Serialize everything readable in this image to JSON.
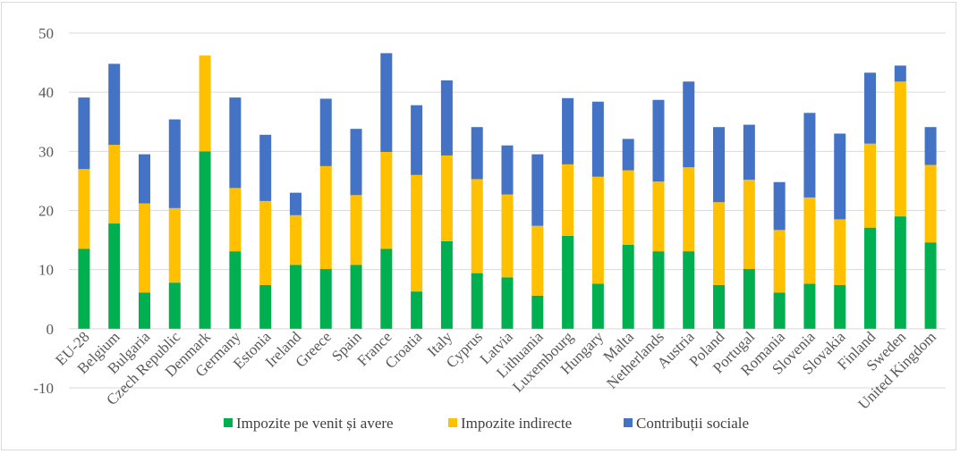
{
  "chart_data": {
    "type": "bar",
    "stacked": true,
    "title": "",
    "xlabel": "",
    "ylabel": "",
    "ylim": [
      -10,
      50
    ],
    "yticks": [
      -10,
      0,
      10,
      20,
      30,
      40,
      50
    ],
    "grid": true,
    "legend_position": "bottom",
    "categories": [
      "EU-28",
      "Belgium",
      "Bulgaria",
      "Czech Republic",
      "Denmark",
      "Germany",
      "Estonia",
      "Ireland",
      "Greece",
      "Spain",
      "France",
      "Croatia",
      "Italy",
      "Cyprus",
      "Latvia",
      "Lithuania",
      "Luxembourg",
      "Hungary",
      "Malta",
      "Netherlands",
      "Austria",
      "Poland",
      "Portugal",
      "Romania",
      "Slovenia",
      "Slovakia",
      "Finland",
      "Sweden",
      "United Kingdom"
    ],
    "series": [
      {
        "name": "Impozite pe venit și avere",
        "color": "#00b050",
        "values": [
          13.5,
          17.8,
          6.1,
          7.8,
          30.0,
          13.1,
          7.4,
          10.8,
          10.1,
          10.8,
          13.5,
          6.3,
          14.8,
          9.4,
          8.7,
          5.6,
          15.7,
          7.6,
          14.2,
          13.1,
          13.1,
          7.4,
          10.1,
          6.1,
          7.6,
          7.4,
          17.1,
          19.0,
          14.6
        ]
      },
      {
        "name": "Impozite indirecte",
        "color": "#ffc000",
        "values": [
          13.5,
          13.3,
          15.1,
          12.6,
          16.2,
          10.7,
          14.2,
          8.4,
          17.4,
          11.8,
          16.4,
          19.7,
          14.5,
          15.9,
          14.0,
          11.8,
          12.1,
          18.1,
          12.6,
          11.8,
          14.2,
          14.0,
          15.1,
          10.6,
          14.6,
          11.1,
          14.2,
          22.8,
          13.1
        ]
      },
      {
        "name": "Contribuții sociale",
        "color": "#4472c4",
        "values": [
          12.1,
          13.7,
          8.3,
          15.0,
          0.0,
          15.3,
          11.2,
          3.8,
          11.4,
          11.2,
          16.7,
          11.8,
          12.7,
          8.8,
          8.3,
          12.1,
          11.2,
          12.7,
          5.3,
          13.8,
          14.5,
          12.7,
          9.3,
          8.1,
          14.3,
          14.5,
          12.0,
          2.7,
          6.4
        ]
      }
    ]
  }
}
